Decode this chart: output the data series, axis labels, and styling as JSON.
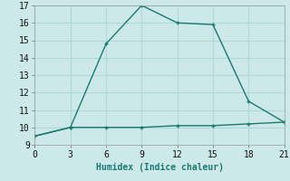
{
  "line1_x": [
    0,
    3,
    6,
    9,
    12,
    15,
    18,
    21
  ],
  "line1_y": [
    9.5,
    10.0,
    14.8,
    17.0,
    16.0,
    15.9,
    11.5,
    10.3
  ],
  "line2_x": [
    0,
    3,
    6,
    9,
    12,
    15,
    18,
    21
  ],
  "line2_y": [
    9.5,
    10.0,
    10.0,
    10.0,
    10.1,
    10.1,
    10.2,
    10.3
  ],
  "line_color": "#1a7a6e",
  "bg_color": "#cce8e8",
  "grid_color": "#b0d8d8",
  "xlabel": "Humidex (Indice chaleur)",
  "xlim": [
    0,
    21
  ],
  "ylim": [
    9,
    17
  ],
  "xticks": [
    0,
    3,
    6,
    9,
    12,
    15,
    18,
    21
  ],
  "yticks": [
    9,
    10,
    11,
    12,
    13,
    14,
    15,
    16,
    17
  ],
  "xlabel_fontsize": 7,
  "tick_fontsize": 7
}
